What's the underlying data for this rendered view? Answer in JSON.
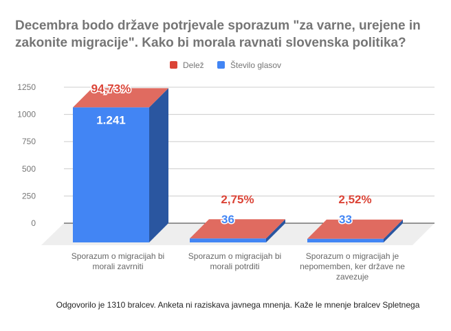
{
  "chart_data": {
    "type": "bar",
    "title_lines": [
      "Decembra bodo države potrjevale sporazum \"za varne, urejene in",
      "zakonite migracije\". Kako bi morala ravnati slovenska politika?"
    ],
    "categories": [
      [
        "Sporazum o migracijah bi",
        "morali zavrniti"
      ],
      [
        "Sporazum o migracijah bi",
        "morali potrditi"
      ],
      [
        "Sporazum o migracijah je",
        "nepomemben, ker države ne",
        "zavezuje"
      ]
    ],
    "series": [
      {
        "name": "Delež",
        "color": "#db4437",
        "labels": [
          "94,73%",
          "2,75%",
          "2,52%"
        ],
        "values": [
          94.73,
          2.75,
          2.52
        ]
      },
      {
        "name": "Število glasov",
        "color": "#4285f4",
        "labels": [
          "1.241",
          "36",
          "33"
        ],
        "values": [
          1241,
          36,
          33
        ]
      }
    ],
    "yticks": [
      "0",
      "250",
      "500",
      "750",
      "1000",
      "1250"
    ],
    "ylim": [
      0,
      1250
    ],
    "grid": true,
    "legend": "top",
    "style": "3d",
    "footer": "Odgovorilo je 1310 bralcev. Anketa ni raziskava javnega mnenja. Kaže le mnenje bralcev Spletnega"
  }
}
